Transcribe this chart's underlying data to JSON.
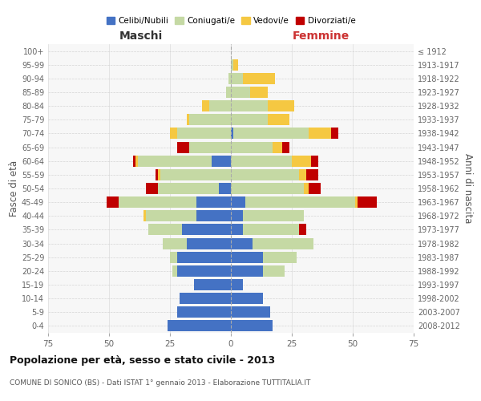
{
  "age_groups": [
    "0-4",
    "5-9",
    "10-14",
    "15-19",
    "20-24",
    "25-29",
    "30-34",
    "35-39",
    "40-44",
    "45-49",
    "50-54",
    "55-59",
    "60-64",
    "65-69",
    "70-74",
    "75-79",
    "80-84",
    "85-89",
    "90-94",
    "95-99",
    "100+"
  ],
  "birth_years": [
    "2008-2012",
    "2003-2007",
    "1998-2002",
    "1993-1997",
    "1988-1992",
    "1983-1987",
    "1978-1982",
    "1973-1977",
    "1968-1972",
    "1963-1967",
    "1958-1962",
    "1953-1957",
    "1948-1952",
    "1943-1947",
    "1938-1942",
    "1933-1937",
    "1928-1932",
    "1923-1927",
    "1918-1922",
    "1913-1917",
    "≤ 1912"
  ],
  "males": {
    "celibi": [
      26,
      22,
      21,
      15,
      22,
      22,
      18,
      20,
      14,
      14,
      5,
      0,
      8,
      0,
      0,
      0,
      0,
      0,
      0,
      0,
      0
    ],
    "coniugati": [
      0,
      0,
      0,
      0,
      2,
      3,
      10,
      14,
      21,
      32,
      25,
      29,
      30,
      17,
      22,
      17,
      9,
      2,
      1,
      0,
      0
    ],
    "vedovi": [
      0,
      0,
      0,
      0,
      0,
      0,
      0,
      0,
      1,
      0,
      0,
      1,
      1,
      0,
      3,
      1,
      3,
      0,
      0,
      0,
      0
    ],
    "divorziati": [
      0,
      0,
      0,
      0,
      0,
      0,
      0,
      0,
      0,
      5,
      5,
      1,
      1,
      5,
      0,
      0,
      0,
      0,
      0,
      0,
      0
    ]
  },
  "females": {
    "nubili": [
      17,
      16,
      13,
      5,
      13,
      13,
      9,
      5,
      5,
      6,
      0,
      0,
      0,
      0,
      1,
      0,
      0,
      0,
      0,
      0,
      0
    ],
    "coniugate": [
      0,
      0,
      0,
      0,
      9,
      14,
      25,
      23,
      25,
      45,
      30,
      28,
      25,
      17,
      31,
      15,
      15,
      8,
      5,
      1,
      0
    ],
    "vedove": [
      0,
      0,
      0,
      0,
      0,
      0,
      0,
      0,
      0,
      1,
      2,
      3,
      8,
      4,
      9,
      9,
      11,
      7,
      13,
      2,
      0
    ],
    "divorziate": [
      0,
      0,
      0,
      0,
      0,
      0,
      0,
      3,
      0,
      8,
      5,
      5,
      3,
      3,
      3,
      0,
      0,
      0,
      0,
      0,
      0
    ]
  },
  "colors": {
    "celibi_nubili": "#4472C4",
    "coniugati": "#c5d9a4",
    "vedovi": "#f5c842",
    "divorziati": "#C00000"
  },
  "title": "Popolazione per età, sesso e stato civile - 2013",
  "subtitle": "COMUNE DI SONICO (BS) - Dati ISTAT 1° gennaio 2013 - Elaborazione TUTTITALIA.IT",
  "xlabel_left": "Maschi",
  "xlabel_right": "Femmine",
  "ylabel_left": "Fasce di età",
  "ylabel_right": "Anni di nascita",
  "xlim": 75,
  "bg_color": "#ffffff",
  "plot_bg": "#f7f7f7",
  "grid_color": "#cccccc",
  "legend_labels": [
    "Celibi/Nubili",
    "Coniugati/e",
    "Vedovi/e",
    "Divorziati/e"
  ]
}
